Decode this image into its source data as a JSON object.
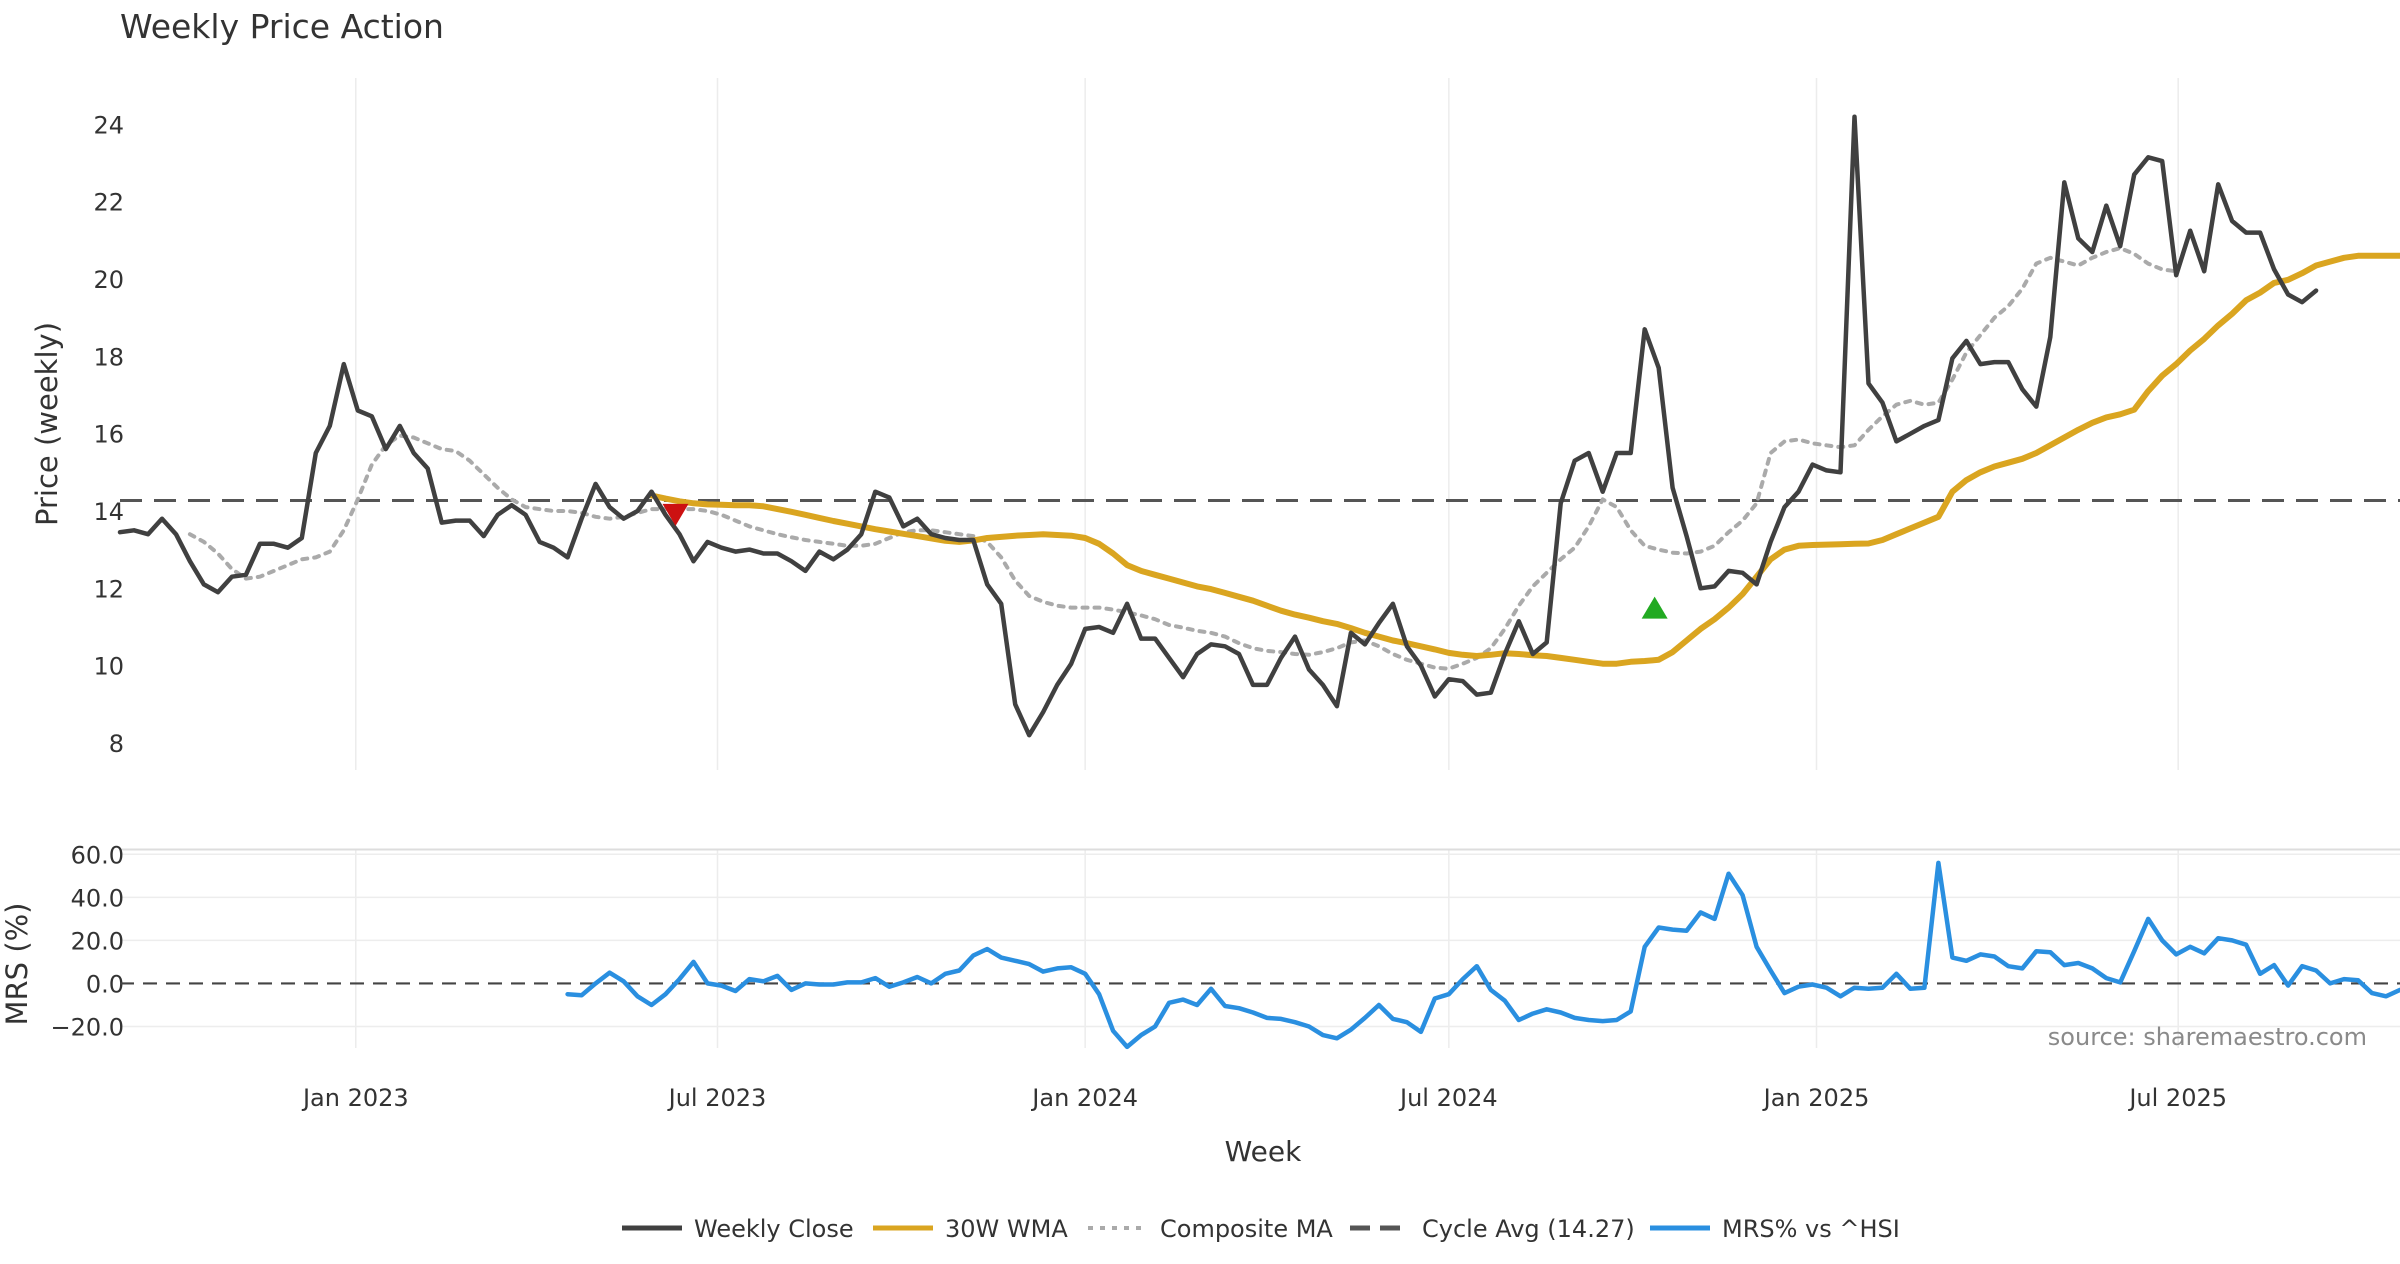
{
  "title": "Weekly Price Action",
  "source": "source: sharemaestro.com",
  "chart_data": {
    "type": "line",
    "x_axis": {
      "label": "Week",
      "ticks": [
        {
          "date": "2023-01-01",
          "label": "Jan 2023"
        },
        {
          "date": "2023-07-01",
          "label": "Jul 2023"
        },
        {
          "date": "2024-01-01",
          "label": "Jan 2024"
        },
        {
          "date": "2024-07-01",
          "label": "Jul 2024"
        },
        {
          "date": "2025-01-01",
          "label": "Jan 2025"
        },
        {
          "date": "2025-07-01",
          "label": "Jul 2025"
        }
      ],
      "range": [
        "2022-09-05",
        "2025-10-20"
      ]
    },
    "price_panel": {
      "ylabel": "Price (weekly)",
      "ylim": [
        7.3,
        25.2
      ],
      "yticks": [
        8,
        10,
        12,
        14,
        16,
        18,
        20,
        22,
        24
      ],
      "cycle_avg": 14.27,
      "markers": [
        {
          "type": "sell",
          "date": "2023-06-10",
          "value": 13.9,
          "color": "#cc1111"
        },
        {
          "type": "buy",
          "date": "2024-10-12",
          "value": 11.5,
          "color": "#22aa22"
        }
      ]
    },
    "mrs_panel": {
      "ylabel": "MRS (%)",
      "ylim": [
        -30,
        62
      ],
      "yticks": [
        60,
        40,
        20,
        0,
        -20
      ],
      "ytick_labels": [
        "60.0",
        "40.0",
        "20.0",
        "0.0",
        "−20.0"
      ]
    },
    "series": [
      {
        "name": "Weekly Close",
        "color": "#404040",
        "style": "solid",
        "panel": "price",
        "start": "2022-09-05",
        "values": [
          13.45,
          13.5,
          13.4,
          13.8,
          13.4,
          12.7,
          12.1,
          11.9,
          12.3,
          12.35,
          13.15,
          13.15,
          13.05,
          13.3,
          15.5,
          16.2,
          17.8,
          16.6,
          16.45,
          15.6,
          16.2,
          15.5,
          15.1,
          13.7,
          13.75,
          13.75,
          13.35,
          13.9,
          14.15,
          13.9,
          13.2,
          13.05,
          12.8,
          13.8,
          14.7,
          14.1,
          13.8,
          14.0,
          14.5,
          13.9,
          13.4,
          12.7,
          13.2,
          13.05,
          12.95,
          13.0,
          12.9,
          12.9,
          12.7,
          12.45,
          12.95,
          12.75,
          13.0,
          13.4,
          14.5,
          14.35,
          13.6,
          13.8,
          13.4,
          13.3,
          13.25,
          13.25,
          12.1,
          11.6,
          9.0,
          8.2,
          8.8,
          9.5,
          10.05,
          10.95,
          11.0,
          10.85,
          11.6,
          10.7,
          10.7,
          10.2,
          9.7,
          10.3,
          10.55,
          10.5,
          10.3,
          9.5,
          9.5,
          10.2,
          10.75,
          9.9,
          9.5,
          8.95,
          10.85,
          10.55,
          11.1,
          11.6,
          10.5,
          10.0,
          9.2,
          9.65,
          9.6,
          9.25,
          9.3,
          10.3,
          11.15,
          10.3,
          10.6,
          14.2,
          15.3,
          15.5,
          14.5,
          15.5,
          15.5,
          18.7,
          17.7,
          14.6,
          13.35,
          12.0,
          12.05,
          12.45,
          12.4,
          12.1,
          13.2,
          14.1,
          14.5,
          15.2,
          15.05,
          15.0,
          24.2,
          17.3,
          16.8,
          15.8,
          16.0,
          16.2,
          16.35,
          17.95,
          18.4,
          17.8,
          17.85,
          17.85,
          17.15,
          16.7,
          18.5,
          22.5,
          21.05,
          20.7,
          21.9,
          20.85,
          22.7,
          23.15,
          23.05,
          20.1,
          21.25,
          20.2,
          22.45,
          21.5,
          21.2,
          21.2,
          20.25,
          19.6,
          19.4,
          19.7
        ]
      },
      {
        "name": "30W WMA",
        "color": "#DAA520",
        "style": "solid",
        "panel": "price",
        "start": "2023-05-29",
        "values": [
          14.4,
          14.32,
          14.25,
          14.2,
          14.17,
          14.16,
          14.15,
          14.15,
          14.12,
          14.05,
          13.98,
          13.9,
          13.82,
          13.74,
          13.67,
          13.6,
          13.53,
          13.47,
          13.41,
          13.35,
          13.29,
          13.23,
          13.2,
          13.24,
          13.3,
          13.33,
          13.36,
          13.38,
          13.4,
          13.38,
          13.36,
          13.3,
          13.15,
          12.9,
          12.6,
          12.45,
          12.35,
          12.25,
          12.15,
          12.05,
          11.98,
          11.88,
          11.78,
          11.68,
          11.55,
          11.42,
          11.32,
          11.24,
          11.15,
          11.08,
          10.97,
          10.85,
          10.75,
          10.65,
          10.58,
          10.5,
          10.42,
          10.33,
          10.28,
          10.25,
          10.28,
          10.32,
          10.3,
          10.27,
          10.25,
          10.2,
          10.15,
          10.1,
          10.05,
          10.05,
          10.1,
          10.12,
          10.15,
          10.35,
          10.65,
          10.95,
          11.2,
          11.5,
          11.85,
          12.3,
          12.75,
          13.0,
          13.1,
          13.12,
          13.13,
          13.14,
          13.15,
          13.16,
          13.25,
          13.4,
          13.55,
          13.7,
          13.85,
          14.5,
          14.8,
          15.0,
          15.15,
          15.25,
          15.35,
          15.5,
          15.7,
          15.9,
          16.1,
          16.28,
          16.42,
          16.5,
          16.62,
          17.1,
          17.5,
          17.8,
          18.15,
          18.45,
          18.8,
          19.1,
          19.45,
          19.65,
          19.9,
          19.98,
          20.15,
          20.35,
          20.45,
          20.55,
          20.6,
          20.6,
          20.6,
          20.6
        ]
      },
      {
        "name": "Composite MA",
        "color": "#aaaaaa",
        "style": "dotted",
        "panel": "price",
        "start": "2022-10-10",
        "values": [
          13.4,
          13.2,
          12.9,
          12.5,
          12.25,
          12.3,
          12.45,
          12.6,
          12.75,
          12.8,
          12.95,
          13.5,
          14.3,
          15.2,
          15.7,
          15.95,
          15.9,
          15.75,
          15.6,
          15.55,
          15.3,
          14.95,
          14.6,
          14.3,
          14.1,
          14.05,
          14.0,
          14.0,
          13.95,
          13.85,
          13.8,
          13.85,
          13.95,
          14.05,
          14.05,
          14.05,
          14.05,
          14.0,
          13.9,
          13.75,
          13.6,
          13.5,
          13.4,
          13.32,
          13.25,
          13.2,
          13.15,
          13.1,
          13.1,
          13.15,
          13.3,
          13.45,
          13.5,
          13.5,
          13.45,
          13.4,
          13.35,
          13.2,
          12.8,
          12.2,
          11.8,
          11.65,
          11.55,
          11.5,
          11.5,
          11.5,
          11.45,
          11.38,
          11.3,
          11.2,
          11.05,
          10.98,
          10.9,
          10.85,
          10.75,
          10.58,
          10.45,
          10.38,
          10.35,
          10.3,
          10.28,
          10.35,
          10.45,
          10.6,
          10.65,
          10.5,
          10.3,
          10.15,
          10.05,
          9.95,
          9.92,
          10.05,
          10.2,
          10.45,
          10.95,
          11.55,
          12.05,
          12.4,
          12.75,
          13.05,
          13.6,
          14.3,
          14.1,
          13.5,
          13.1,
          13.0,
          12.92,
          12.9,
          12.95,
          13.1,
          13.45,
          13.75,
          14.2,
          15.5,
          15.8,
          15.85,
          15.75,
          15.7,
          15.65,
          15.7,
          16.1,
          16.45,
          16.75,
          16.85,
          16.75,
          16.8,
          17.4,
          18.1,
          18.55,
          19.0,
          19.3,
          19.75,
          20.4,
          20.55,
          20.45,
          20.35,
          20.55,
          20.7,
          20.8,
          20.65,
          20.4,
          20.25,
          20.2
        ]
      },
      {
        "name": "MRS% vs ^HSI",
        "color": "#2A8FE0",
        "style": "solid",
        "panel": "mrs",
        "start": "2023-04-17",
        "values": [
          -5,
          -5.5,
          0,
          5,
          1,
          -6,
          -10,
          -5,
          2,
          10,
          0,
          -1,
          -3.5,
          2,
          1,
          3.5,
          -3,
          0,
          -0.5,
          -0.5,
          0.5,
          0.5,
          2.5,
          -1.5,
          0.5,
          3,
          0,
          4.5,
          6,
          13,
          16,
          12,
          10.5,
          9,
          5.5,
          7,
          7.5,
          4.5,
          -5,
          -22,
          -29.5,
          -24,
          -20,
          -9,
          -7.5,
          -10,
          -2.5,
          -10.5,
          -11.5,
          -13.5,
          -16,
          -16.5,
          -18,
          -20,
          -24,
          -25.5,
          -21.5,
          -16,
          -10,
          -16.5,
          -18,
          -22.5,
          -7,
          -5,
          2,
          8,
          -3,
          -8,
          -17,
          -14,
          -12,
          -13.5,
          -16,
          -17,
          -17.5,
          -17,
          -13,
          17,
          26,
          25,
          24.5,
          33,
          30,
          51,
          41,
          17,
          6,
          -4.5,
          -1.5,
          -0.5,
          -2,
          -6,
          -2,
          -2.5,
          -2,
          4.5,
          -2.5,
          -2,
          56,
          12,
          10.5,
          13.5,
          12.5,
          8,
          7,
          15,
          14.5,
          8.5,
          9.5,
          7,
          2.5,
          0.5,
          15,
          30,
          20,
          13.5,
          17,
          14,
          21,
          20,
          18,
          4.5,
          8.5,
          -1,
          8,
          6,
          0,
          2,
          1.5,
          -4.5,
          -6,
          -3
        ]
      }
    ],
    "reference_lines": [
      {
        "name": "Cycle Avg (14.27)",
        "value": 14.27,
        "panel": "price",
        "color": "#555555",
        "style": "dashed"
      },
      {
        "name": "",
        "value": 0,
        "panel": "mrs",
        "color": "#444444",
        "style": "dashed"
      }
    ],
    "legend": {
      "placement": "bottom-center",
      "items": [
        {
          "label": "Weekly Close",
          "color": "#404040",
          "style": "solid"
        },
        {
          "label": "30W WMA",
          "color": "#DAA520",
          "style": "solid"
        },
        {
          "label": "Composite MA",
          "color": "#aaaaaa",
          "style": "dotted"
        },
        {
          "label": "Cycle Avg (14.27)",
          "color": "#555555",
          "style": "dashed"
        },
        {
          "label": "MRS% vs ^HSI",
          "color": "#2A8FE0",
          "style": "solid"
        }
      ]
    },
    "grid": true
  }
}
